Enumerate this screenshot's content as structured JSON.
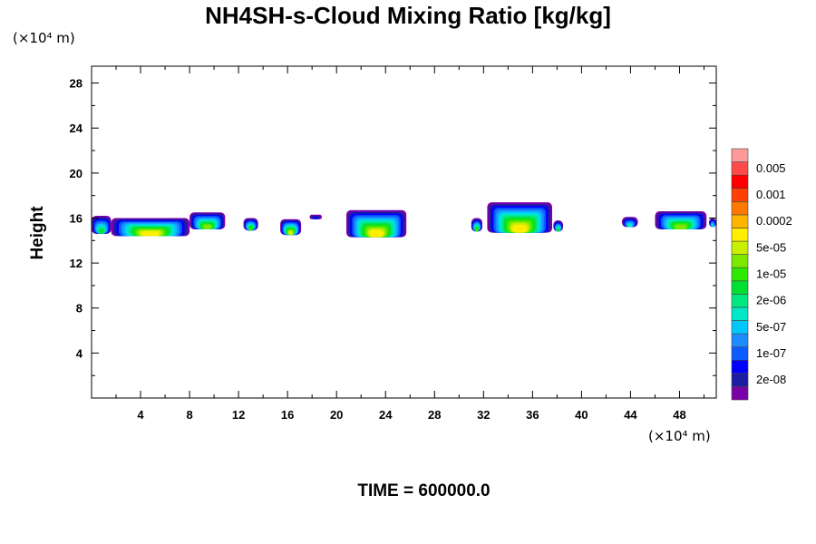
{
  "chart_data": {
    "type": "heatmap",
    "title": "NH4SH-s-Cloud Mixing Ratio [kg/kg]",
    "ylabel": "Height",
    "xlabel": "",
    "x_unit": "(×10⁴ m)",
    "y_unit": "(×10⁴ m)",
    "xlim": [
      0,
      51
    ],
    "ylim": [
      0,
      29.5
    ],
    "x_ticks": [
      4,
      8,
      12,
      16,
      20,
      24,
      28,
      32,
      36,
      40,
      44,
      48
    ],
    "y_ticks": [
      4,
      8,
      12,
      16,
      20,
      24,
      28
    ],
    "grid": false,
    "legend": {
      "position": "right",
      "levels": [
        {
          "label": "",
          "color": "#7a00a8"
        },
        {
          "label": "2e-08",
          "color": "#1c1ca3"
        },
        {
          "label": "",
          "color": "#0000ff"
        },
        {
          "label": "1e-07",
          "color": "#0a5cff"
        },
        {
          "label": "",
          "color": "#1c8cff"
        },
        {
          "label": "5e-07",
          "color": "#00c8ff"
        },
        {
          "label": "",
          "color": "#00e8c8"
        },
        {
          "label": "2e-06",
          "color": "#00e880"
        },
        {
          "label": "",
          "color": "#00e030"
        },
        {
          "label": "1e-05",
          "color": "#2ee800"
        },
        {
          "label": "",
          "color": "#7ce800"
        },
        {
          "label": "5e-05",
          "color": "#c8f000"
        },
        {
          "label": "",
          "color": "#ffee00"
        },
        {
          "label": "0.0002",
          "color": "#ffb400"
        },
        {
          "label": "",
          "color": "#ff7800"
        },
        {
          "label": "0.001",
          "color": "#ff4000"
        },
        {
          "label": "",
          "color": "#ff0000"
        },
        {
          "label": "0.005",
          "color": "#ff4a4a"
        },
        {
          "label": "",
          "color": "#ff9a9a"
        }
      ]
    },
    "cloud_patches": [
      {
        "x0": 0.0,
        "x1": 1.6,
        "y0": 14.6,
        "y1": 16.2,
        "peak_level": 8
      },
      {
        "x0": 1.6,
        "x1": 8.0,
        "y0": 14.4,
        "y1": 16.0,
        "peak_level": 12
      },
      {
        "x0": 8.0,
        "x1": 10.9,
        "y0": 15.0,
        "y1": 16.5,
        "peak_level": 10
      },
      {
        "x0": 12.4,
        "x1": 13.6,
        "y0": 14.9,
        "y1": 16.0,
        "peak_level": 9
      },
      {
        "x0": 15.4,
        "x1": 17.1,
        "y0": 14.5,
        "y1": 15.9,
        "peak_level": 11
      },
      {
        "x0": 17.8,
        "x1": 18.8,
        "y0": 15.9,
        "y1": 16.3,
        "peak_level": 2
      },
      {
        "x0": 20.8,
        "x1": 25.7,
        "y0": 14.3,
        "y1": 16.7,
        "peak_level": 12
      },
      {
        "x0": 31.0,
        "x1": 31.9,
        "y0": 14.8,
        "y1": 16.0,
        "peak_level": 9
      },
      {
        "x0": 32.3,
        "x1": 37.6,
        "y0": 14.7,
        "y1": 17.4,
        "peak_level": 12
      },
      {
        "x0": 37.7,
        "x1": 38.5,
        "y0": 14.8,
        "y1": 15.8,
        "peak_level": 8
      },
      {
        "x0": 43.3,
        "x1": 44.6,
        "y0": 15.2,
        "y1": 16.1,
        "peak_level": 6
      },
      {
        "x0": 46.0,
        "x1": 50.2,
        "y0": 15.0,
        "y1": 16.6,
        "peak_level": 10
      },
      {
        "x0": 50.4,
        "x1": 51.0,
        "y0": 15.2,
        "y1": 16.0,
        "peak_level": 6
      }
    ]
  },
  "footer": {
    "time_label": "TIME = 600000.0"
  }
}
